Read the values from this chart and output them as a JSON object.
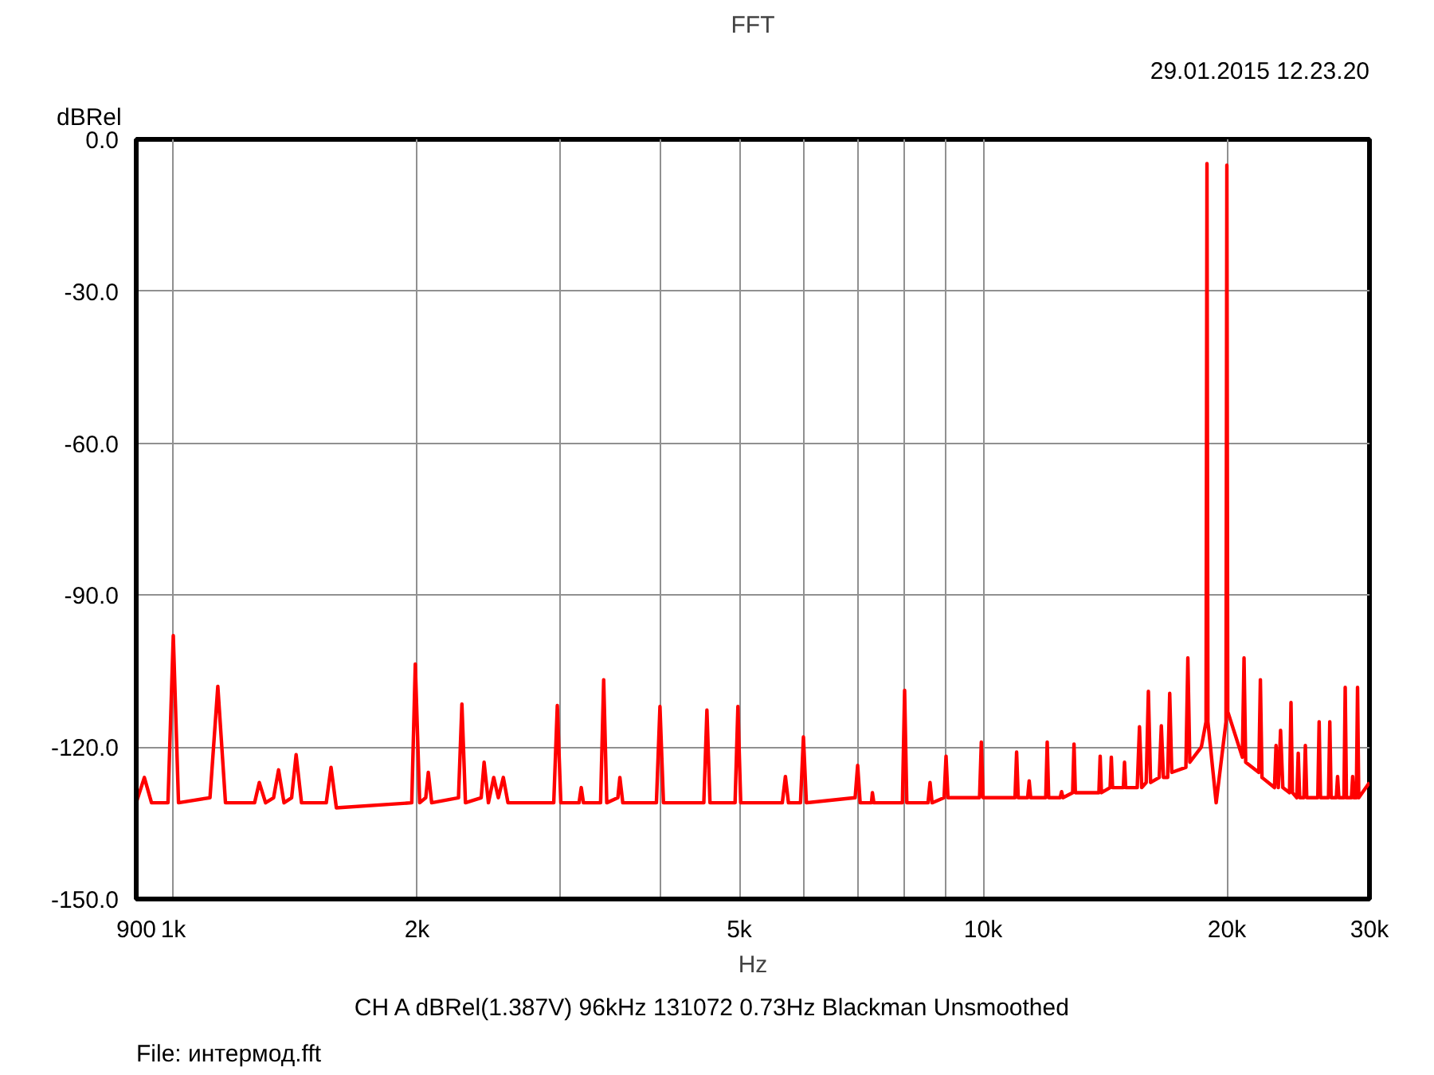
{
  "chart_data": {
    "type": "line",
    "title": "FFT",
    "ylabel": "dBRel",
    "xlabel": "Hz",
    "annotations": [
      "29.01.2015 12.23.20",
      "CH A   dBRel(1.387V)   96kHz   131072   0.73Hz   Blackman   Unsmoothed",
      "File: интермод.fft"
    ],
    "log": "x",
    "grid": true,
    "line_style": "solid",
    "xlim": [
      900,
      30000
    ],
    "ylim": [
      -150,
      0
    ],
    "xticks": [
      900,
      {
        "value": 1000,
        "label": "1k"
      },
      {
        "value": 2000,
        "label": "2k"
      },
      {
        "value": 3000,
        "label": null
      },
      {
        "value": 4000,
        "label": null
      },
      {
        "value": 5000,
        "label": "5k"
      },
      {
        "value": 6000,
        "label": null
      },
      {
        "value": 7000,
        "label": null
      },
      {
        "value": 8000,
        "label": null
      },
      {
        "value": 9000,
        "label": null
      },
      {
        "value": 10000,
        "label": "10k"
      },
      {
        "value": 20000,
        "label": "20k"
      },
      {
        "value": 30000,
        "label": "30k"
      }
    ],
    "yticks": [
      {
        "value": -150,
        "label": "-150.0"
      },
      {
        "value": -120,
        "label": "-120.0"
      },
      {
        "value": -90,
        "label": "-90.0"
      },
      {
        "value": -60,
        "label": "-60.0"
      },
      {
        "value": -30,
        "label": "-30.0"
      },
      {
        "value": 0,
        "label": "0.0"
      }
    ],
    "series": [
      {
        "color": "#ff0000",
        "x": [
          900,
          921,
          940,
          985,
          1000,
          1015,
          1110,
          1135,
          1160,
          1260,
          1277,
          1300,
          1330,
          1349,
          1370,
          1400,
          1418,
          1440,
          1545,
          1566,
          1590,
          1970,
          1990,
          2015,
          2050,
          2065,
          2085,
          2250,
          2272,
          2295,
          2400,
          2420,
          2450,
          2487,
          2520,
          2556,
          2590,
          2950,
          2980,
          3010,
          3170,
          3190,
          3210,
          3370,
          3400,
          3430,
          3540,
          3560,
          3590,
          3950,
          3990,
          4030,
          4520,
          4560,
          4600,
          4940,
          4980,
          5020,
          5650,
          5700,
          5750,
          5950,
          6000,
          6050,
          6950,
          7000,
          7050,
          7280,
          7300,
          7330,
          7950,
          8000,
          8050,
          8550,
          8600,
          8650,
          8950,
          9000,
          9050,
          9900,
          9950,
          10000,
          10950,
          11000,
          11050,
          11350,
          11400,
          11450,
          11950,
          12000,
          12050,
          12450,
          12500,
          12550,
          12900,
          12950,
          13000,
          13900,
          13950,
          14000,
          14350,
          14400,
          14450,
          14900,
          14950,
          15000,
          15500,
          15600,
          15700,
          15900,
          16000,
          16100,
          16500,
          16600,
          16700,
          16900,
          17000,
          17100,
          17800,
          17900,
          18000,
          18600,
          18850,
          18900,
          18950,
          19400,
          19950,
          20000,
          20050,
          20900,
          21000,
          21100,
          21900,
          22000,
          22100,
          22900,
          23000,
          23150,
          23300,
          23450,
          23900,
          24000,
          24100,
          24400,
          24500,
          24600,
          24900,
          25000,
          25100,
          25900,
          26000,
          26100,
          26700,
          26800,
          26900,
          27300,
          27400,
          27500,
          27900,
          28000,
          28100,
          28500,
          28600,
          28700,
          28900,
          29000,
          29100,
          30000
        ],
        "values": [
          -131,
          -126,
          -131,
          -131,
          -98,
          -131,
          -130,
          -108,
          -131,
          -131,
          -127,
          -131,
          -130,
          -124.5,
          -131,
          -130,
          -121.5,
          -131,
          -131,
          -124,
          -132,
          -131,
          -103.6,
          -131,
          -130,
          -125,
          -131,
          -130,
          -111.5,
          -131,
          -130,
          -123,
          -131,
          -126,
          -130,
          -126,
          -131,
          -131,
          -111.8,
          -131,
          -131,
          -128,
          -131,
          -131,
          -106.7,
          -131,
          -130,
          -126,
          -131,
          -131,
          -112,
          -131,
          -131,
          -112.7,
          -131,
          -131,
          -112,
          -131,
          -131,
          -125.8,
          -131,
          -131,
          -118,
          -131,
          -130,
          -123.6,
          -131,
          -131,
          -129,
          -131,
          -131,
          -108.8,
          -131,
          -131,
          -127,
          -131,
          -130,
          -121.8,
          -130,
          -130,
          -119,
          -130,
          -130,
          -121,
          -130,
          -130,
          -126.7,
          -130,
          -130,
          -119,
          -130,
          -130,
          -128.8,
          -130,
          -129,
          -119.4,
          -129,
          -129,
          -121.8,
          -129,
          -128,
          -122,
          -128,
          -128,
          -123,
          -128,
          -128,
          -116,
          -128,
          -127,
          -109,
          -127,
          -126,
          -115.8,
          -126,
          -126,
          -109.4,
          -125,
          -124,
          -102.4,
          -123,
          -120,
          -115,
          -4.8,
          -115,
          -131,
          -115,
          -5.1,
          -113,
          -122,
          -102.4,
          -123,
          -125,
          -106.7,
          -126,
          -128,
          -119.7,
          -128,
          -116.7,
          -128,
          -129,
          -111.2,
          -129,
          -130,
          -121.2,
          -130,
          -130,
          -119.7,
          -130,
          -130,
          -115,
          -130,
          -130,
          -115,
          -130,
          -130,
          -125.8,
          -130,
          -130,
          -108.2,
          -130,
          -130,
          -125.8,
          -130,
          -130,
          -108.2,
          -130,
          -127
        ]
      }
    ]
  }
}
